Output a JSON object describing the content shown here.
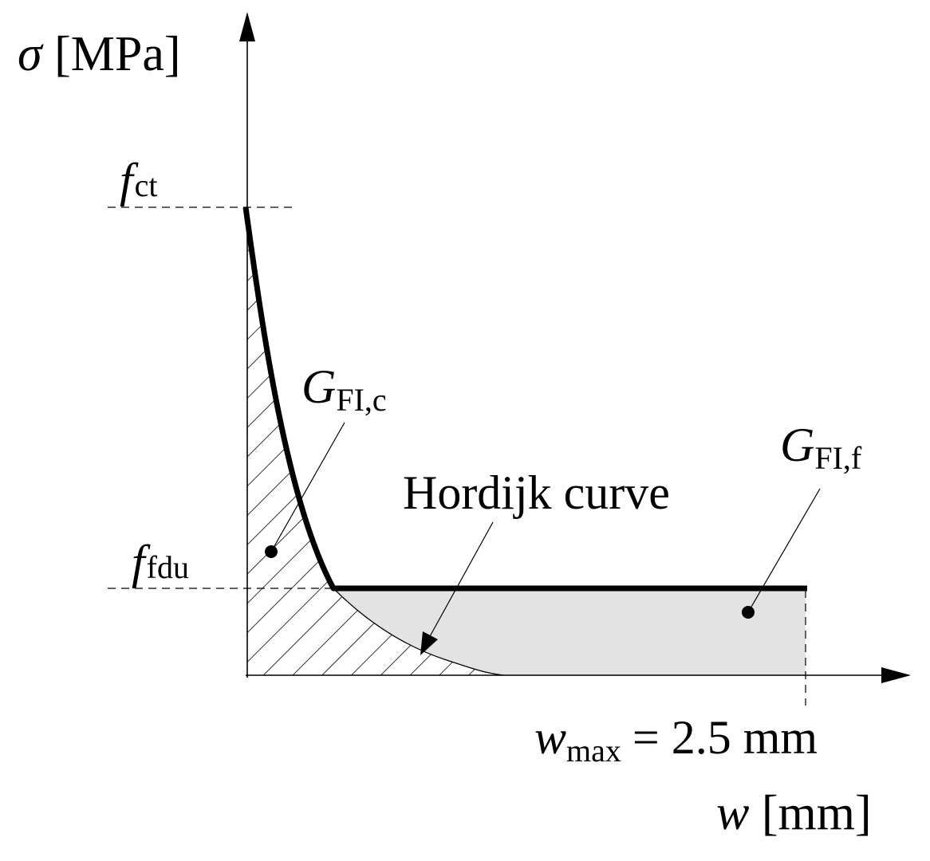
{
  "y_axis": {
    "symbol": "σ",
    "unit": "[MPa]"
  },
  "x_axis": {
    "symbol": "w",
    "unit": "[mm]"
  },
  "f_ct": {
    "base": "f",
    "sub": "ct"
  },
  "f_fdu": {
    "base": "f",
    "sub": "fdu"
  },
  "w_max": {
    "base": "w",
    "sub": "max",
    "value": "= 2.5 mm"
  },
  "G_FIc": {
    "base": "G",
    "sub": "FI,c"
  },
  "G_FIf": {
    "base": "G",
    "sub": "FI,f"
  },
  "hordijk": "Hordijk curve"
}
